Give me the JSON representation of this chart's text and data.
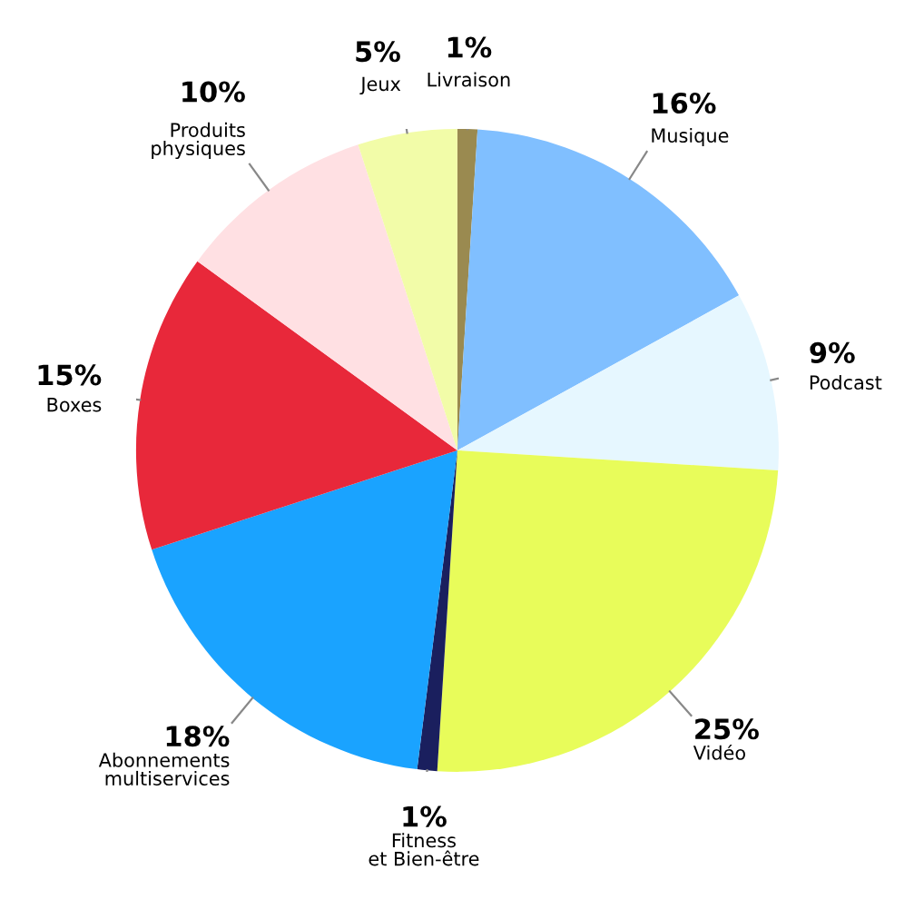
{
  "chart_data": {
    "type": "pie",
    "categories": [
      "Livraison",
      "Musique",
      "Podcast",
      "Vidéo",
      "Fitness\net Bien-être",
      "Abonnements\nmultiservices",
      "Boxes",
      "Produits\nphysiques",
      "Jeux"
    ],
    "values": [
      1,
      16,
      9,
      25,
      1,
      18,
      15,
      10,
      5
    ],
    "colors": [
      "#9a8a50",
      "#80bfff",
      "#e6f7ff",
      "#e8fc5a",
      "#1a1f5e",
      "#1aa3ff",
      "#e8283a",
      "#ffe0e3",
      "#f2fca8"
    ],
    "value_labels": [
      "1%",
      "16%",
      "9%",
      "25%",
      "1%",
      "18%",
      "15%",
      "10%",
      "5%"
    ]
  }
}
